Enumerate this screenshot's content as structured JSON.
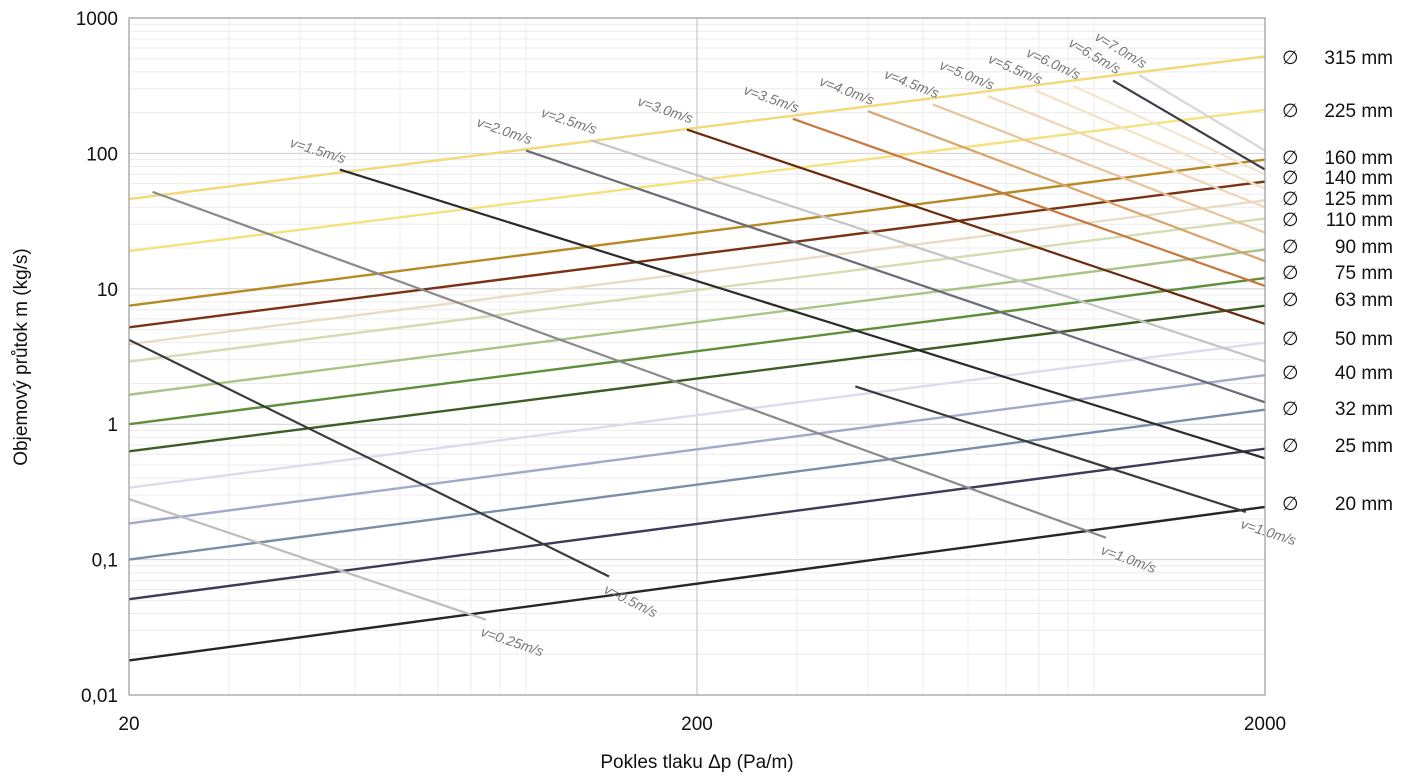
{
  "chart_data": {
    "type": "line",
    "xlabel": "Pokles tlaku Δp (Pa/m)",
    "ylabel": "Objemový průtok m (kg/s)",
    "x_scale": "log",
    "y_scale": "log",
    "xlim": [
      20,
      2000
    ],
    "ylim": [
      0.01,
      1000
    ],
    "x_ticks": [
      "20",
      "200",
      "2000"
    ],
    "y_ticks": [
      "0,01",
      "0,1",
      "1",
      "10",
      "100",
      "1000"
    ],
    "grid": true,
    "diameter_series": [
      {
        "name": "∅ 315 mm",
        "symbol": "∅",
        "size": "315 mm",
        "color": "#f3d978",
        "x": [
          20,
          2000
        ],
        "y": [
          46,
          520
        ]
      },
      {
        "name": "∅ 225 mm",
        "symbol": "∅",
        "size": "225 mm",
        "color": "#f5e27e",
        "x": [
          20,
          2000
        ],
        "y": [
          19,
          210
        ]
      },
      {
        "name": "∅ 160 mm",
        "symbol": "∅",
        "size": "160 mm",
        "color": "#b88a24",
        "x": [
          20,
          2000
        ],
        "y": [
          7.5,
          90
        ]
      },
      {
        "name": "∅ 140 mm",
        "symbol": "∅",
        "size": "140 mm",
        "color": "#7a3214",
        "x": [
          20,
          2000
        ],
        "y": [
          5.2,
          62
        ]
      },
      {
        "name": "∅ 125 mm",
        "symbol": "∅",
        "size": "125 mm",
        "color": "#e8ddc4",
        "x": [
          20,
          2000
        ],
        "y": [
          3.9,
          45
        ]
      },
      {
        "name": "∅ 110 mm",
        "symbol": "∅",
        "size": "110 mm",
        "color": "#d2ddb2",
        "x": [
          20,
          2000
        ],
        "y": [
          2.9,
          33
        ]
      },
      {
        "name": "∅ 90 mm",
        "symbol": "∅",
        "size": "90 mm",
        "color": "#a9c487",
        "x": [
          20,
          2000
        ],
        "y": [
          1.65,
          19.5
        ]
      },
      {
        "name": "∅ 75 mm",
        "symbol": "∅",
        "size": "75 mm",
        "color": "#5e8f3a",
        "x": [
          20,
          2000
        ],
        "y": [
          1.0,
          12
        ]
      },
      {
        "name": "∅ 63 mm",
        "symbol": "∅",
        "size": "63 mm",
        "color": "#3e5c24",
        "x": [
          20,
          2000
        ],
        "y": [
          0.63,
          7.5
        ]
      },
      {
        "name": "∅ 50 mm",
        "symbol": "∅",
        "size": "50 mm",
        "color": "#dcdcec",
        "x": [
          20,
          2000
        ],
        "y": [
          0.34,
          4.0
        ]
      },
      {
        "name": "∅ 40 mm",
        "symbol": "∅",
        "size": "40 mm",
        "color": "#a2a8c8",
        "x": [
          20,
          2000
        ],
        "y": [
          0.185,
          2.3
        ]
      },
      {
        "name": "∅ 32 mm",
        "symbol": "∅",
        "size": "32 mm",
        "color": "#7a8ea8",
        "x": [
          20,
          2000
        ],
        "y": [
          0.1,
          1.28
        ]
      },
      {
        "name": "∅ 25 mm",
        "symbol": "∅",
        "size": "25 mm",
        "color": "#3c3c58",
        "x": [
          20,
          2000
        ],
        "y": [
          0.051,
          0.66
        ]
      },
      {
        "name": "∅ 20 mm",
        "symbol": "∅",
        "size": "20 mm",
        "color": "#262626",
        "x": [
          20,
          2000
        ],
        "y": [
          0.018,
          0.245
        ]
      }
    ],
    "velocity_series": [
      {
        "name": "v=0.25m/s",
        "color": "#bdbdbd",
        "x": [
          20,
          85
        ],
        "y": [
          0.28,
          0.036
        ]
      },
      {
        "name": "v=0.5m/s",
        "color": "#3a3a3a",
        "x": [
          20,
          140
        ],
        "y": [
          4.2,
          0.075
        ]
      },
      {
        "name": "v=1.0m/s",
        "color": "#8a8a8a",
        "x": [
          22,
          1050
        ],
        "y": [
          52,
          0.145
        ]
      },
      {
        "name": "v=1.0m/s",
        "color": "#3a3a3a",
        "x": [
          380,
          1850
        ],
        "y": [
          1.9,
          0.225
        ]
      },
      {
        "name": "v=1.5m/s",
        "color": "#2a2a2a",
        "x": [
          47,
          2000
        ],
        "y": [
          76,
          0.56
        ]
      },
      {
        "name": "v=2.0m/s",
        "color": "#6c6c78",
        "x": [
          100,
          2000
        ],
        "y": [
          105,
          1.45
        ]
      },
      {
        "name": "v=2.5m/s",
        "color": "#c4c4c4",
        "x": [
          130,
          2000
        ],
        "y": [
          125,
          2.9
        ]
      },
      {
        "name": "v=3.0m/s",
        "color": "#6a2a10",
        "x": [
          192,
          2000
        ],
        "y": [
          150,
          5.5
        ]
      },
      {
        "name": "v=3.5m/s",
        "color": "#c8783c",
        "x": [
          295,
          2000
        ],
        "y": [
          180,
          10.5
        ]
      },
      {
        "name": "v=4.0m/s",
        "color": "#d9a46c",
        "x": [
          400,
          2000
        ],
        "y": [
          205,
          16
        ]
      },
      {
        "name": "v=4.5m/s",
        "color": "#e8c49e",
        "x": [
          520,
          2000
        ],
        "y": [
          230,
          26
        ]
      },
      {
        "name": "v=5.0m/s",
        "color": "#f0d5b8",
        "x": [
          650,
          2000
        ],
        "y": [
          265,
          40
        ]
      },
      {
        "name": "v=5.5m/s",
        "color": "#f4e2c6",
        "x": [
          790,
          2000
        ],
        "y": [
          290,
          55
        ]
      },
      {
        "name": "v=6.0m/s",
        "color": "#f2e6d0",
        "x": [
          920,
          2000
        ],
        "y": [
          315,
          70
        ]
      },
      {
        "name": "v=6.5m/s",
        "color": "#3c3c46",
        "x": [
          1080,
          2000
        ],
        "y": [
          345,
          76
        ]
      },
      {
        "name": "v=7.0m/s",
        "color": "#d6d6d6",
        "x": [
          1200,
          2000
        ],
        "y": [
          380,
          105
        ]
      }
    ]
  }
}
